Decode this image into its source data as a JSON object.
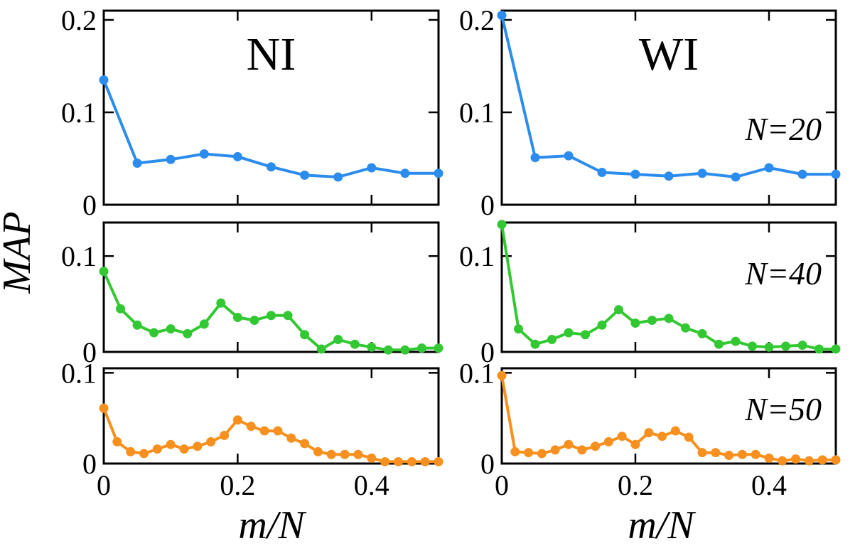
{
  "figure": {
    "ylabel": "MAP",
    "xlabel": "m/N",
    "column_titles": [
      "NI",
      "WI"
    ],
    "row_labels": [
      "N=20",
      "N=40",
      "N=50"
    ]
  },
  "chart_data": [
    {
      "type": "line",
      "panel": "NI, N=20",
      "title": "NI",
      "annotation": "",
      "color": "#2b8cee",
      "x": [
        0.0,
        0.05,
        0.1,
        0.15,
        0.2,
        0.25,
        0.3,
        0.35,
        0.4,
        0.45,
        0.5
      ],
      "y": [
        0.135,
        0.045,
        0.049,
        0.055,
        0.052,
        0.041,
        0.032,
        0.03,
        0.04,
        0.034,
        0.034
      ],
      "xlim": [
        0,
        0.5
      ],
      "ylim": [
        0,
        0.21
      ],
      "yticks": [
        0,
        0.1,
        0.2
      ],
      "yticklabels": [
        "0",
        "0.1",
        "0.2"
      ],
      "xticks": [
        0,
        0.2,
        0.4
      ],
      "xticklabels": [
        "",
        "",
        ""
      ]
    },
    {
      "type": "line",
      "panel": "WI, N=20",
      "title": "WI",
      "annotation": "N=20",
      "color": "#2b8cee",
      "x": [
        0.0,
        0.05,
        0.1,
        0.15,
        0.2,
        0.25,
        0.3,
        0.35,
        0.4,
        0.45,
        0.5
      ],
      "y": [
        0.205,
        0.051,
        0.053,
        0.035,
        0.033,
        0.031,
        0.034,
        0.03,
        0.04,
        0.033,
        0.033
      ],
      "xlim": [
        0,
        0.5
      ],
      "ylim": [
        0,
        0.21
      ],
      "yticks": [
        0,
        0.1,
        0.2
      ],
      "yticklabels": [
        "0",
        "0.1",
        "0.2"
      ],
      "xticks": [
        0,
        0.2,
        0.4
      ],
      "xticklabels": [
        "",
        "",
        ""
      ]
    },
    {
      "type": "line",
      "panel": "NI, N=40",
      "title": "",
      "annotation": "",
      "color": "#33c833",
      "x": [
        0.0,
        0.025,
        0.05,
        0.075,
        0.1,
        0.125,
        0.15,
        0.175,
        0.2,
        0.225,
        0.25,
        0.275,
        0.3,
        0.325,
        0.35,
        0.375,
        0.4,
        0.425,
        0.45,
        0.475,
        0.5
      ],
      "y": [
        0.084,
        0.045,
        0.028,
        0.02,
        0.024,
        0.019,
        0.029,
        0.051,
        0.036,
        0.033,
        0.038,
        0.038,
        0.018,
        0.003,
        0.013,
        0.008,
        0.005,
        0.002,
        0.002,
        0.004,
        0.004
      ],
      "xlim": [
        0,
        0.5
      ],
      "ylim": [
        0,
        0.135
      ],
      "yticks": [
        0,
        0.1
      ],
      "yticklabels": [
        "0",
        "0.1"
      ],
      "xticks": [
        0,
        0.2,
        0.4
      ],
      "xticklabels": [
        "",
        "",
        ""
      ]
    },
    {
      "type": "line",
      "panel": "WI, N=40",
      "title": "",
      "annotation": "N=40",
      "color": "#33c833",
      "x": [
        0.0,
        0.025,
        0.05,
        0.075,
        0.1,
        0.125,
        0.15,
        0.175,
        0.2,
        0.225,
        0.25,
        0.275,
        0.3,
        0.325,
        0.35,
        0.375,
        0.4,
        0.425,
        0.45,
        0.475,
        0.5
      ],
      "y": [
        0.133,
        0.024,
        0.008,
        0.013,
        0.02,
        0.018,
        0.028,
        0.044,
        0.03,
        0.033,
        0.035,
        0.025,
        0.019,
        0.008,
        0.011,
        0.006,
        0.005,
        0.006,
        0.007,
        0.003,
        0.003
      ],
      "xlim": [
        0,
        0.5
      ],
      "ylim": [
        0,
        0.135
      ],
      "yticks": [
        0,
        0.1
      ],
      "yticklabels": [
        "0",
        "0.1"
      ],
      "xticks": [
        0,
        0.2,
        0.4
      ],
      "xticklabels": [
        "",
        "",
        ""
      ]
    },
    {
      "type": "line",
      "panel": "NI, N=50",
      "title": "",
      "annotation": "",
      "color": "#f7901e",
      "x": [
        0.0,
        0.02,
        0.04,
        0.06,
        0.08,
        0.1,
        0.12,
        0.14,
        0.16,
        0.18,
        0.2,
        0.22,
        0.24,
        0.26,
        0.28,
        0.3,
        0.32,
        0.34,
        0.36,
        0.38,
        0.4,
        0.42,
        0.44,
        0.46,
        0.48,
        0.5
      ],
      "y": [
        0.061,
        0.024,
        0.013,
        0.011,
        0.016,
        0.021,
        0.016,
        0.019,
        0.024,
        0.031,
        0.048,
        0.041,
        0.036,
        0.036,
        0.028,
        0.022,
        0.013,
        0.01,
        0.01,
        0.01,
        0.006,
        0.002,
        0.002,
        0.002,
        0.002,
        0.002
      ],
      "xlim": [
        0,
        0.5
      ],
      "ylim": [
        0,
        0.105
      ],
      "yticks": [
        0,
        0.1
      ],
      "yticklabels": [
        "0",
        "0.1"
      ],
      "xticks": [
        0,
        0.2,
        0.4
      ],
      "xticklabels": [
        "0",
        "0.2",
        "0.4"
      ]
    },
    {
      "type": "line",
      "panel": "WI, N=50",
      "title": "",
      "annotation": "N=50",
      "color": "#f7901e",
      "x": [
        0.0,
        0.02,
        0.04,
        0.06,
        0.08,
        0.1,
        0.12,
        0.14,
        0.16,
        0.18,
        0.2,
        0.22,
        0.24,
        0.26,
        0.28,
        0.3,
        0.32,
        0.34,
        0.36,
        0.38,
        0.4,
        0.42,
        0.44,
        0.46,
        0.48,
        0.5
      ],
      "y": [
        0.097,
        0.013,
        0.012,
        0.011,
        0.015,
        0.021,
        0.015,
        0.019,
        0.024,
        0.03,
        0.021,
        0.034,
        0.03,
        0.036,
        0.029,
        0.012,
        0.012,
        0.009,
        0.01,
        0.01,
        0.006,
        0.003,
        0.005,
        0.003,
        0.004,
        0.004
      ],
      "xlim": [
        0,
        0.5
      ],
      "ylim": [
        0,
        0.105
      ],
      "yticks": [
        0,
        0.1
      ],
      "yticklabels": [
        "0",
        "0.1"
      ],
      "xticks": [
        0,
        0.2,
        0.4
      ],
      "xticklabels": [
        "0",
        "0.2",
        "0.4"
      ]
    }
  ]
}
